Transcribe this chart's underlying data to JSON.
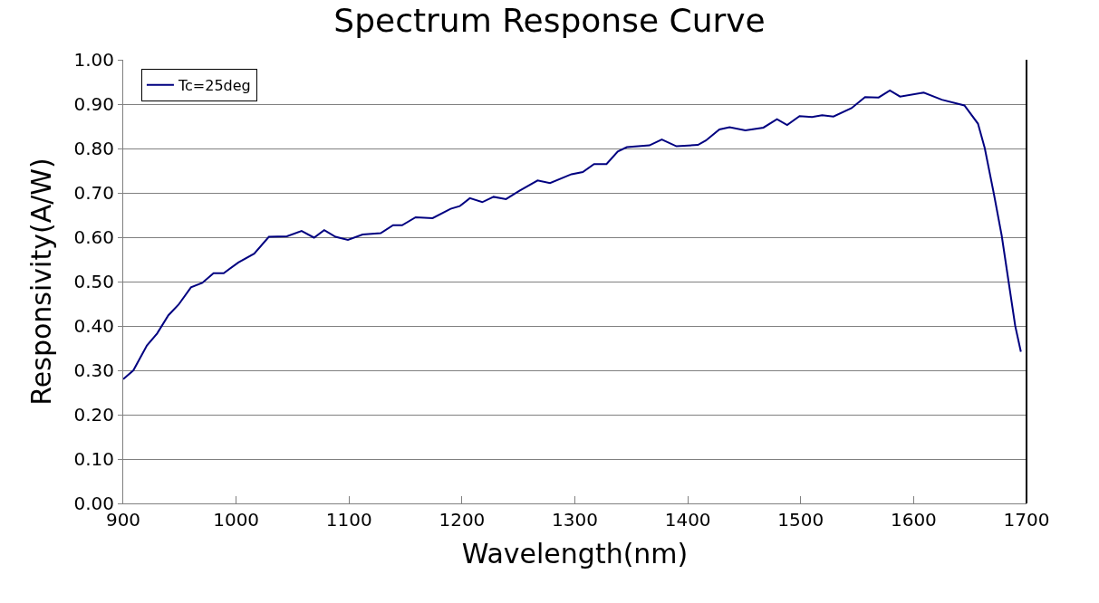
{
  "chart_data": {
    "type": "line",
    "title": "Spectrum Response Curve",
    "xlabel": "Wavelength(nm)",
    "ylabel": "Responsivity(A/W)",
    "xlim": [
      900,
      1700
    ],
    "xticks": [
      900,
      1000,
      1100,
      1200,
      1300,
      1400,
      1500,
      1600,
      1700
    ],
    "ylim": [
      0,
      1
    ],
    "yticks": [
      {
        "value": 0,
        "label": "0.00"
      },
      {
        "value": 0.1,
        "label": "0.10"
      },
      {
        "value": 0.2,
        "label": "0.20"
      },
      {
        "value": 0.3,
        "label": "0.30"
      },
      {
        "value": 0.4,
        "label": "0.40"
      },
      {
        "value": 0.5,
        "label": "0.50"
      },
      {
        "value": 0.6,
        "label": "0.60"
      },
      {
        "value": 0.7,
        "label": "0.70"
      },
      {
        "value": 0.8,
        "label": "0.80"
      },
      {
        "value": 0.9,
        "label": "0.90"
      },
      {
        "value": 1,
        "label": "1.00"
      }
    ],
    "grid": "y",
    "legend": "top left",
    "marker": "none",
    "line_style": "solid",
    "series": [
      {
        "name": "Tc=25deg",
        "color": "#000080",
        "x": [
          900,
          909,
          921,
          930,
          940,
          949,
          960,
          970,
          980,
          989,
          1002,
          1016,
          1029,
          1045,
          1058,
          1069,
          1078,
          1088,
          1099,
          1112,
          1128,
          1139,
          1147,
          1159,
          1174,
          1190,
          1198,
          1207,
          1218,
          1228,
          1239,
          1251,
          1267,
          1278,
          1297,
          1307,
          1317,
          1328,
          1338,
          1346,
          1366,
          1377,
          1390,
          1409,
          1416,
          1428,
          1437,
          1451,
          1467,
          1479,
          1488,
          1499,
          1510,
          1519,
          1529,
          1545,
          1557,
          1569,
          1579,
          1588,
          1609,
          1625,
          1645,
          1657,
          1663,
          1671,
          1678,
          1684,
          1690,
          1695
        ],
        "values": [
          0.28,
          0.3,
          0.356,
          0.383,
          0.424,
          0.448,
          0.487,
          0.497,
          0.519,
          0.519,
          0.543,
          0.563,
          0.601,
          0.602,
          0.614,
          0.599,
          0.616,
          0.601,
          0.594,
          0.606,
          0.609,
          0.627,
          0.627,
          0.645,
          0.643,
          0.664,
          0.67,
          0.688,
          0.679,
          0.691,
          0.686,
          0.705,
          0.728,
          0.722,
          0.742,
          0.747,
          0.765,
          0.765,
          0.793,
          0.803,
          0.807,
          0.82,
          0.805,
          0.808,
          0.818,
          0.843,
          0.848,
          0.841,
          0.847,
          0.866,
          0.853,
          0.873,
          0.871,
          0.875,
          0.872,
          0.891,
          0.916,
          0.915,
          0.931,
          0.917,
          0.926,
          0.91,
          0.897,
          0.856,
          0.801,
          0.699,
          0.604,
          0.502,
          0.4,
          0.342
        ]
      }
    ]
  }
}
